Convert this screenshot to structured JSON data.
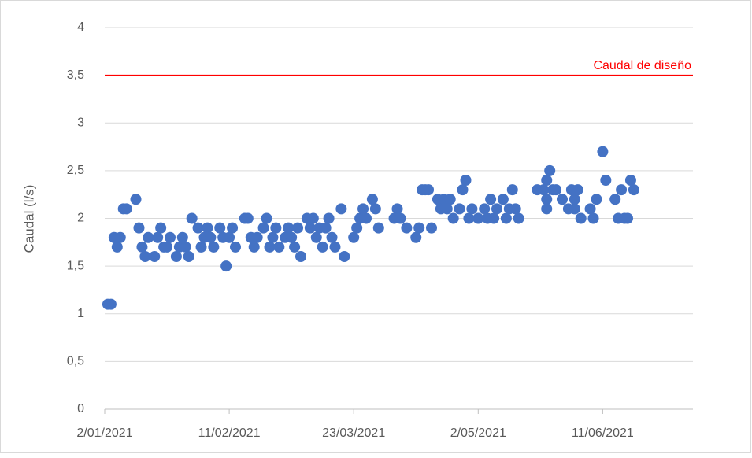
{
  "chart_data": {
    "type": "scatter",
    "y_label": "Caudal (l/s)",
    "color": "#4472c4",
    "grid": true,
    "reference_line": {
      "value": 3.5,
      "label": "Caudal de diseño",
      "color": "#ff0000"
    },
    "xlim": [
      "2021-01-02",
      "2021-07-10"
    ],
    "xticks": [
      {
        "value": "2021-01-02",
        "label": "2/01/2021"
      },
      {
        "value": "2021-02-11",
        "label": "11/02/2021"
      },
      {
        "value": "2021-03-23",
        "label": "23/03/2021"
      },
      {
        "value": "2021-05-02",
        "label": "2/05/2021"
      },
      {
        "value": "2021-06-11",
        "label": "11/06/2021"
      }
    ],
    "ylim": [
      0,
      4
    ],
    "yticks": [
      0,
      {
        "value": 0.5,
        "label": "0,5"
      },
      1,
      {
        "value": 1.5,
        "label": "1,5"
      },
      2,
      {
        "value": 2.5,
        "label": "2,5"
      },
      3,
      {
        "value": 3.5,
        "label": "3,5"
      },
      4
    ],
    "x": [
      "2021-01-03",
      "2021-01-04",
      "2021-01-05",
      "2021-01-06",
      "2021-01-07",
      "2021-01-08",
      "2021-01-09",
      "2021-01-12",
      "2021-01-13",
      "2021-01-14",
      "2021-01-15",
      "2021-01-16",
      "2021-01-18",
      "2021-01-19",
      "2021-01-20",
      "2021-01-21",
      "2021-01-22",
      "2021-01-23",
      "2021-01-25",
      "2021-01-26",
      "2021-01-27",
      "2021-01-28",
      "2021-01-29",
      "2021-01-30",
      "2021-02-01",
      "2021-02-02",
      "2021-02-03",
      "2021-02-04",
      "2021-02-05",
      "2021-02-06",
      "2021-02-08",
      "2021-02-09",
      "2021-02-10",
      "2021-02-11",
      "2021-02-12",
      "2021-02-13",
      "2021-02-16",
      "2021-02-17",
      "2021-02-18",
      "2021-02-19",
      "2021-02-20",
      "2021-02-22",
      "2021-02-23",
      "2021-02-24",
      "2021-02-25",
      "2021-02-26",
      "2021-02-27",
      "2021-03-01",
      "2021-03-02",
      "2021-03-03",
      "2021-03-04",
      "2021-03-05",
      "2021-03-06",
      "2021-03-08",
      "2021-03-09",
      "2021-03-10",
      "2021-03-11",
      "2021-03-12",
      "2021-03-13",
      "2021-03-14",
      "2021-03-15",
      "2021-03-16",
      "2021-03-17",
      "2021-03-19",
      "2021-03-20",
      "2021-03-23",
      "2021-03-24",
      "2021-03-25",
      "2021-03-26",
      "2021-03-27",
      "2021-03-29",
      "2021-03-30",
      "2021-03-31",
      "2021-04-05",
      "2021-04-06",
      "2021-04-07",
      "2021-04-09",
      "2021-04-12",
      "2021-04-13",
      "2021-04-14",
      "2021-04-15",
      "2021-04-16",
      "2021-04-17",
      "2021-04-19",
      "2021-04-20",
      "2021-04-21",
      "2021-04-22",
      "2021-04-23",
      "2021-04-24",
      "2021-04-26",
      "2021-04-27",
      "2021-04-28",
      "2021-04-29",
      "2021-04-30",
      "2021-05-02",
      "2021-05-04",
      "2021-05-05",
      "2021-05-06",
      "2021-05-07",
      "2021-05-08",
      "2021-05-10",
      "2021-05-11",
      "2021-05-12",
      "2021-05-13",
      "2021-05-14",
      "2021-05-15",
      "2021-05-21",
      "2021-05-23",
      "2021-05-24",
      "2021-05-24",
      "2021-05-24",
      "2021-05-25",
      "2021-05-26",
      "2021-05-27",
      "2021-05-29",
      "2021-05-31",
      "2021-06-01",
      "2021-06-02",
      "2021-06-02",
      "2021-06-03",
      "2021-06-04",
      "2021-06-07",
      "2021-06-08",
      "2021-06-09",
      "2021-06-11",
      "2021-06-12",
      "2021-06-15",
      "2021-06-16",
      "2021-06-17",
      "2021-06-18",
      "2021-06-19",
      "2021-06-20",
      "2021-06-21"
    ],
    "values": [
      1.1,
      1.1,
      1.8,
      1.7,
      1.8,
      2.1,
      2.1,
      2.2,
      1.9,
      1.7,
      1.6,
      1.8,
      1.6,
      1.8,
      1.9,
      1.7,
      1.7,
      1.8,
      1.6,
      1.7,
      1.8,
      1.7,
      1.6,
      2.0,
      1.9,
      1.7,
      1.8,
      1.9,
      1.8,
      1.7,
      1.9,
      1.8,
      1.5,
      1.8,
      1.9,
      1.7,
      2.0,
      2.0,
      1.8,
      1.7,
      1.8,
      1.9,
      2.0,
      1.7,
      1.8,
      1.9,
      1.7,
      1.8,
      1.9,
      1.8,
      1.7,
      1.9,
      1.6,
      2.0,
      1.9,
      2.0,
      1.8,
      1.9,
      1.7,
      1.9,
      2.0,
      1.8,
      1.7,
      2.1,
      1.6,
      1.8,
      1.9,
      2.0,
      2.1,
      2.0,
      2.2,
      2.1,
      1.9,
      2.0,
      2.1,
      2.0,
      1.9,
      1.8,
      1.9,
      2.3,
      2.3,
      2.3,
      1.9,
      2.2,
      2.1,
      2.2,
      2.1,
      2.2,
      2.0,
      2.1,
      2.3,
      2.4,
      2.0,
      2.1,
      2.0,
      2.1,
      2.0,
      2.2,
      2.0,
      2.1,
      2.2,
      2.0,
      2.1,
      2.3,
      2.1,
      2.0,
      2.3,
      2.3,
      2.4,
      2.2,
      2.1,
      2.5,
      2.3,
      2.3,
      2.2,
      2.1,
      2.3,
      2.2,
      2.1,
      2.3,
      2.0,
      2.1,
      2.0,
      2.2,
      2.7,
      2.4,
      2.2,
      2.0,
      2.3,
      2.0,
      2.0,
      2.4,
      2.3
    ]
  }
}
